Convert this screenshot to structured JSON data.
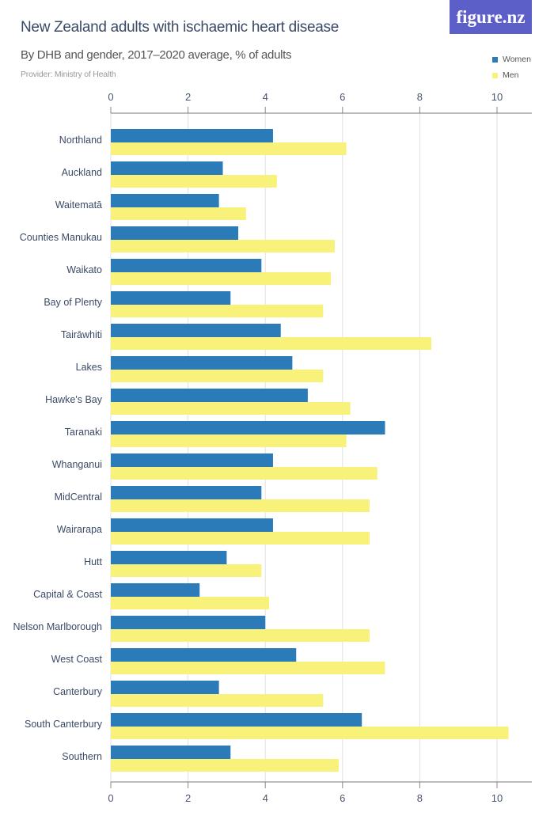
{
  "header": {
    "title": "New Zealand adults with ischaemic heart disease",
    "subtitle": "By DHB and gender, 2017–2020 average, % of adults",
    "provider": "Provider: Ministry of Health",
    "logo": "figure.nz"
  },
  "chart_data": {
    "type": "bar",
    "orientation": "horizontal",
    "title": "New Zealand adults with ischaemic heart disease",
    "subtitle": "By DHB and gender, 2017–2020 average, % of adults",
    "xlim": [
      0,
      11
    ],
    "ticks": [
      "0",
      "2",
      "4",
      "6",
      "8",
      "10"
    ],
    "tick_values": [
      0,
      2,
      4,
      6,
      8,
      10
    ],
    "grid": true,
    "legend_placement": "top-right",
    "categories": [
      "Northland",
      "Auckland",
      "Waitematā",
      "Counties Manukau",
      "Waikato",
      "Bay of Plenty",
      "Tairāwhiti",
      "Lakes",
      "Hawke's Bay",
      "Taranaki",
      "Whanganui",
      "MidCentral",
      "Wairarapa",
      "Hutt",
      "Capital & Coast",
      "Nelson Marlborough",
      "West Coast",
      "Canterbury",
      "South Canterbury",
      "Southern"
    ],
    "series": [
      {
        "name": "Women",
        "color": "#2b7bb9",
        "values": [
          4.2,
          2.9,
          2.8,
          3.3,
          3.9,
          3.1,
          4.4,
          4.7,
          5.1,
          7.1,
          4.2,
          3.9,
          4.2,
          3.0,
          2.3,
          4.0,
          4.8,
          2.8,
          6.5,
          3.1
        ]
      },
      {
        "name": "Men",
        "color": "#f9f27a",
        "values": [
          6.1,
          4.3,
          3.5,
          5.8,
          5.7,
          5.5,
          8.3,
          5.5,
          6.2,
          6.1,
          6.9,
          6.7,
          6.7,
          3.9,
          4.1,
          6.7,
          7.1,
          5.5,
          10.3,
          5.9
        ]
      }
    ]
  }
}
